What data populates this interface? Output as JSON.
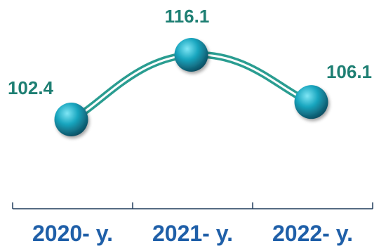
{
  "chart_data": {
    "type": "line",
    "title": "",
    "xlabel": "",
    "ylabel": "",
    "categories": [
      "2020- y.",
      "2021- y.",
      "2022- y."
    ],
    "series": [
      {
        "values": [
          102.4,
          116.1,
          106.1
        ],
        "value_labels": [
          "102.4",
          "116.1",
          "106.1"
        ]
      }
    ],
    "ylim": [
      95,
      120
    ],
    "grid": false,
    "legend": "none",
    "smooth": true
  },
  "colors": {
    "line": "#2a9d91",
    "value_label": "#1e7f73",
    "tick_label": "#1f5fa8",
    "axis": "#1f3a5a",
    "marker_highlight": "#7fe6f5",
    "marker_mid": "#1aa7c0",
    "marker_dark": "#0d4f63"
  }
}
